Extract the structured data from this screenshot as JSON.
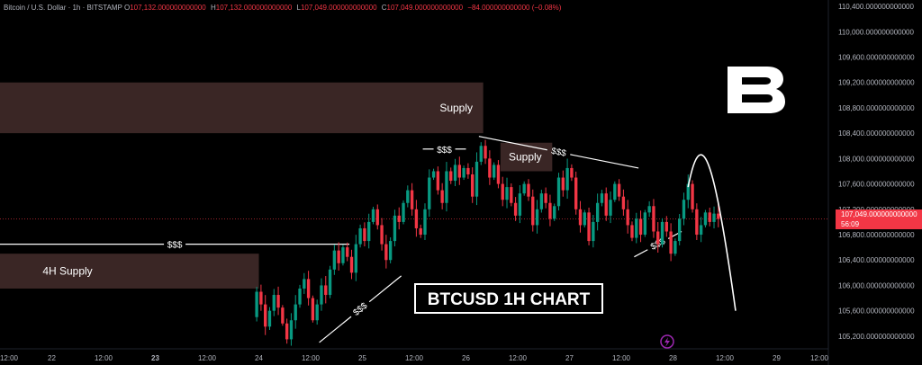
{
  "header": {
    "symbol": "Bitcoin / U.S. Dollar · 1h · BITSTAMP",
    "o_label": "O",
    "o": "107,132.000000000000",
    "h_label": "H",
    "h": "107,132.000000000000",
    "l_label": "L",
    "l": "107,049.000000000000",
    "c_label": "C",
    "c": "107,049.000000000000",
    "change": "−84.000000000000 (−0.08%)"
  },
  "last_price": {
    "value": 107049,
    "label": "107,049.000000000000",
    "countdown": "56:09"
  },
  "colors": {
    "up": "#089981",
    "down": "#f23645",
    "zone": "#3a2625",
    "bg": "#000000"
  },
  "chart_data": {
    "type": "candlestick",
    "title": "BTCUSD 1H CHART",
    "y_axis": {
      "min": 105000,
      "max": 110500,
      "position": "right",
      "ticks": [
        105200,
        105600,
        106000,
        106400,
        106800,
        107200,
        107600,
        108000,
        108400,
        108800,
        109200,
        109600,
        110000,
        110400
      ],
      "tick_labels": [
        "105,200.000000000000",
        "105,600.000000000000",
        "106,000.000000000000",
        "106,400.000000000000",
        "106,800.000000000000",
        "107,200.000000000000",
        "107,600.000000000000",
        "108,000.000000000000",
        "108,400.000000000000",
        "108,800.000000000000",
        "109,200.000000000000",
        "109,600.000000000000",
        "110,000.000000000000",
        "110,400.000000000000"
      ]
    },
    "x_axis": {
      "start_hour": 0,
      "end_hour": 192,
      "ticks": [
        {
          "hour": 0,
          "label": "12:00",
          "bold": false
        },
        {
          "hour": 12,
          "label": "22",
          "bold": false
        },
        {
          "hour": 24,
          "label": "12:00",
          "bold": false
        },
        {
          "hour": 36,
          "label": "23",
          "bold": true
        },
        {
          "hour": 48,
          "label": "12:00",
          "bold": false
        },
        {
          "hour": 60,
          "label": "24",
          "bold": false
        },
        {
          "hour": 72,
          "label": "12:00",
          "bold": false
        },
        {
          "hour": 84,
          "label": "25",
          "bold": false
        },
        {
          "hour": 96,
          "label": "12:00",
          "bold": false
        },
        {
          "hour": 108,
          "label": "26",
          "bold": false
        },
        {
          "hour": 120,
          "label": "12:00",
          "bold": false
        },
        {
          "hour": 132,
          "label": "27",
          "bold": false
        },
        {
          "hour": 144,
          "label": "12:00",
          "bold": false
        },
        {
          "hour": 156,
          "label": "28",
          "bold": false
        },
        {
          "hour": 168,
          "label": "12:00",
          "bold": false
        },
        {
          "hour": 180,
          "label": "29",
          "bold": false
        },
        {
          "hour": 192,
          "label": "12:00",
          "bold": false
        }
      ]
    },
    "candles_start_hour": 58.5,
    "closes": [
      105500,
      105900,
      105700,
      105350,
      105600,
      105850,
      105650,
      105400,
      105150,
      105450,
      105700,
      105950,
      106100,
      105800,
      105450,
      105700,
      106000,
      105850,
      106250,
      106550,
      106350,
      106600,
      106450,
      106200,
      106650,
      106900,
      106700,
      107000,
      107200,
      106950,
      106650,
      106400,
      106700,
      107100,
      107000,
      107300,
      107500,
      107200,
      106900,
      106800,
      107200,
      107700,
      107800,
      107500,
      107300,
      107800,
      107650,
      107900,
      107700,
      107850,
      107750,
      107400,
      107950,
      108200,
      108000,
      107700,
      107900,
      107600,
      107350,
      107550,
      107300,
      107100,
      107450,
      107600,
      107400,
      106950,
      107200,
      107450,
      107300,
      107050,
      107250,
      107700,
      107500,
      107850,
      107700,
      107200,
      106950,
      107150,
      106700,
      107000,
      107300,
      107450,
      107100,
      107350,
      107600,
      107400,
      107200,
      106950,
      106750,
      107050,
      106800,
      107150,
      107250,
      106850,
      106650,
      107000,
      106850,
      106500,
      106700,
      107050,
      107350,
      107600,
      107200,
      106800,
      106950,
      107150,
      107000,
      107132,
      107049
    ],
    "zones": [
      {
        "label": "Supply",
        "y_low": 108400,
        "y_high": 109200,
        "x_from_hour": 0,
        "x_to_hour": 112
      },
      {
        "label": "4H Supply",
        "y_low": 105950,
        "y_high": 106500,
        "x_from_hour": 0,
        "x_to_hour": 60
      },
      {
        "label": "Supply",
        "y_low": 107800,
        "y_high": 108250,
        "x_from_hour": 116,
        "x_to_hour": 128
      }
    ],
    "liquidity_levels": [
      {
        "label": "$$$",
        "kind": "flat",
        "y": 106650,
        "x1": 0,
        "x2": 81
      },
      {
        "label": "$$$",
        "kind": "flat",
        "y": 108150,
        "x1": 98,
        "x2": 108
      },
      {
        "label": "$$$",
        "kind": "trend",
        "y1": 108350,
        "y2": 107850,
        "x1": 111,
        "x2": 148
      },
      {
        "label": "$$$",
        "kind": "trend",
        "y1": 105100,
        "y2": 106150,
        "x1": 74,
        "x2": 93
      },
      {
        "label": "$$$",
        "kind": "trend",
        "y1": 106450,
        "y2": 106850,
        "x1": 147,
        "x2": 158
      }
    ],
    "projection": [
      {
        "hour": 159.5,
        "price": 107550
      },
      {
        "hour": 162.8,
        "price": 108150
      },
      {
        "hour": 166,
        "price": 107800
      },
      {
        "hour": 170.5,
        "price": 105600
      }
    ]
  }
}
